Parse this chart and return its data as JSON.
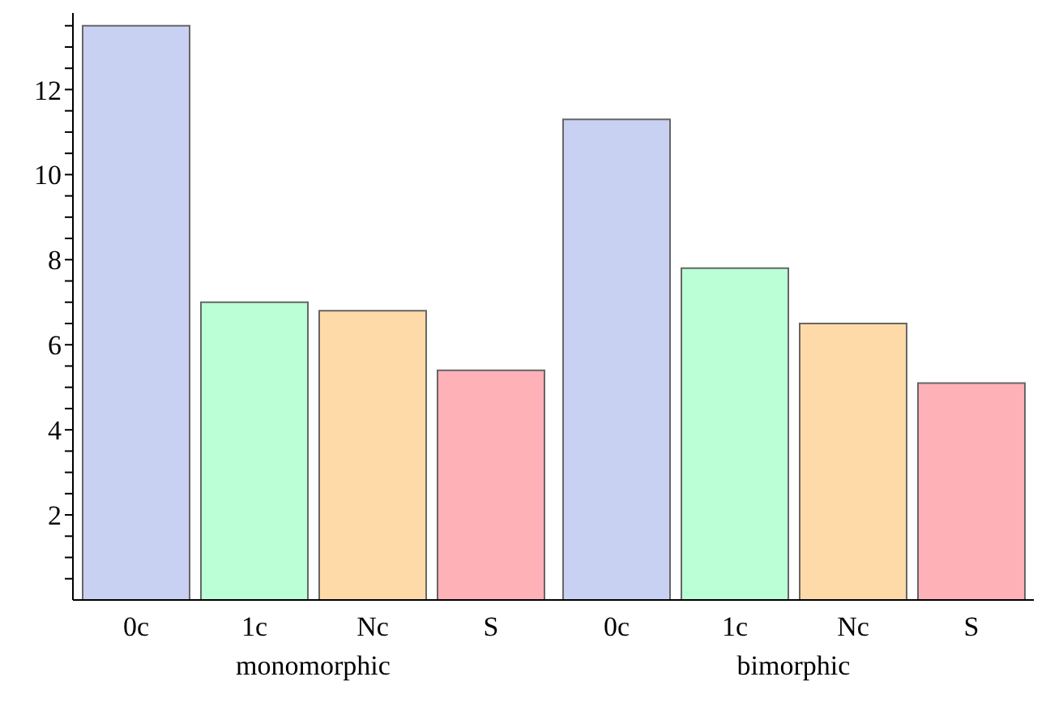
{
  "chart_data": {
    "type": "bar",
    "categories": [
      "monomorphic",
      "bimorphic"
    ],
    "series": [
      {
        "name": "0c",
        "color": "#c9d1f3",
        "values": [
          13.5,
          11.3
        ]
      },
      {
        "name": "1c",
        "color": "#baffd6",
        "values": [
          7.0,
          7.8
        ]
      },
      {
        "name": "Nc",
        "color": "#fedaa8",
        "values": [
          6.8,
          6.5
        ]
      },
      {
        "name": "S",
        "color": "#ffb1b8",
        "values": [
          5.4,
          5.1
        ]
      }
    ],
    "ylim": [
      0,
      13.8
    ],
    "yticks": [
      {
        "value": 0.5,
        "label": null
      },
      {
        "value": 1,
        "label": null
      },
      {
        "value": 1.5,
        "label": null
      },
      2,
      {
        "value": 2.5,
        "label": null
      },
      {
        "value": 3,
        "label": null
      },
      {
        "value": 3.5,
        "label": null
      },
      4,
      {
        "value": 4.5,
        "label": null
      },
      {
        "value": 5,
        "label": null
      },
      {
        "value": 5.5,
        "label": null
      },
      6,
      {
        "value": 6.5,
        "label": null
      },
      {
        "value": 7,
        "label": null
      },
      {
        "value": 7.5,
        "label": null
      },
      8,
      {
        "value": 8.5,
        "label": null
      },
      {
        "value": 9,
        "label": null
      },
      {
        "value": 9.5,
        "label": null
      },
      10,
      {
        "value": 10.5,
        "label": null
      },
      {
        "value": 11,
        "label": null
      },
      {
        "value": 11.5,
        "label": null
      },
      12,
      {
        "value": 12.5,
        "label": null
      },
      {
        "value": 13,
        "label": null
      },
      {
        "value": 13.5,
        "label": null
      }
    ]
  }
}
